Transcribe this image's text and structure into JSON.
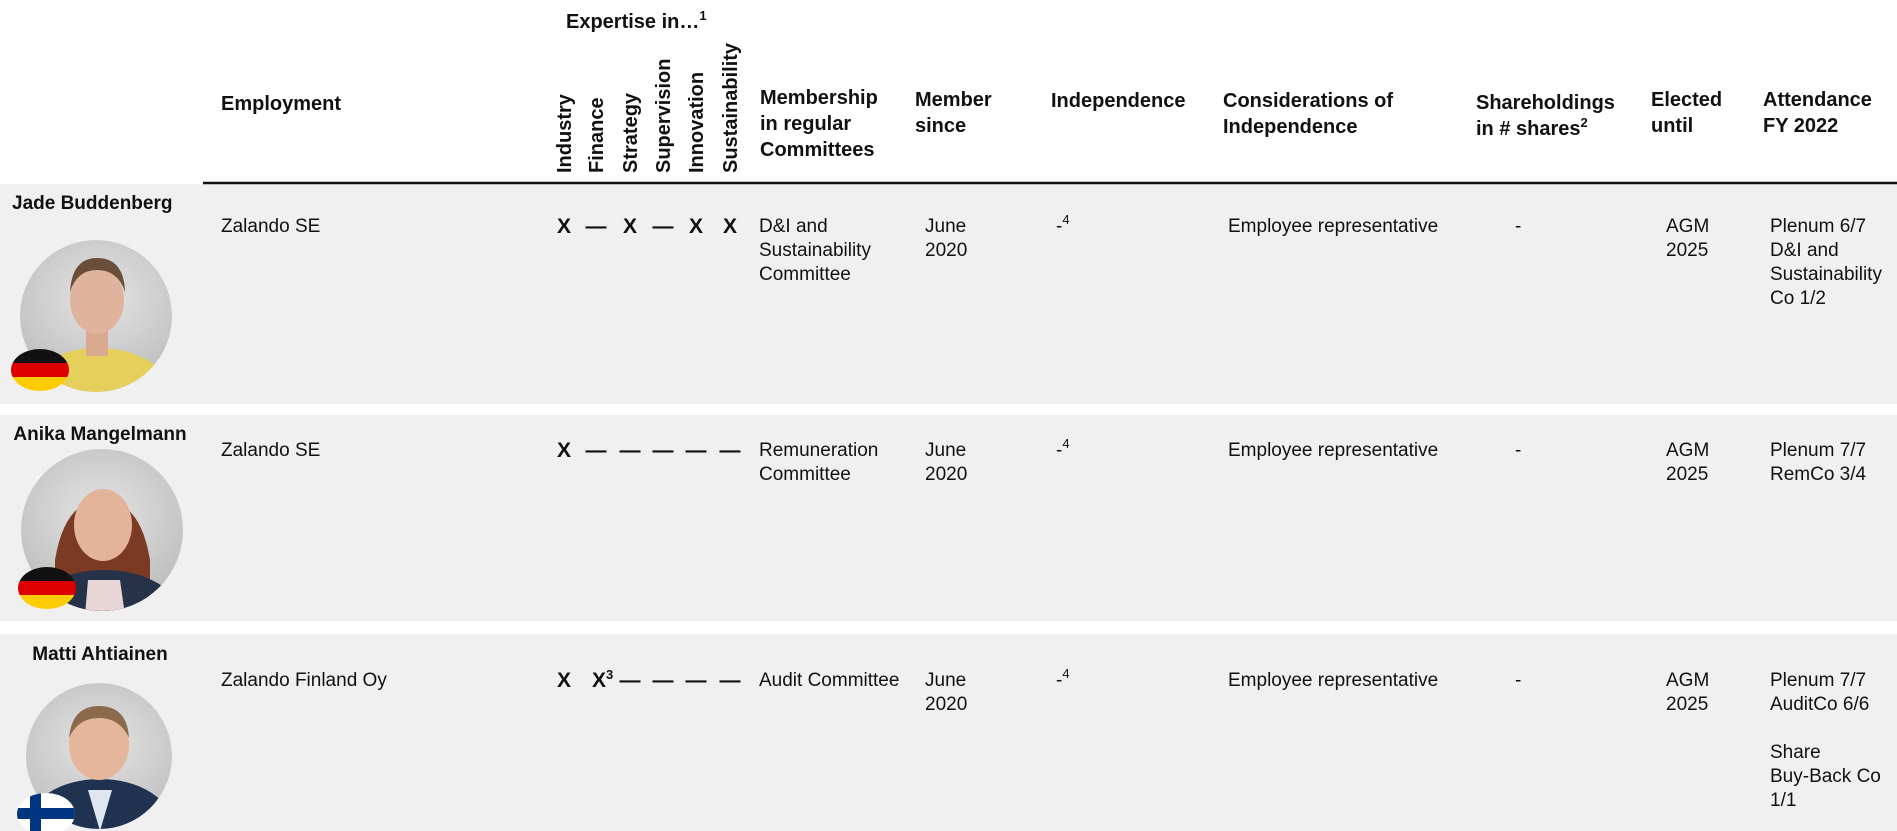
{
  "header": {
    "employment": "Employment",
    "expertise_title": "Expertise in…",
    "expertise_note": "1",
    "expertise_areas": [
      "Industry",
      "Finance",
      "Strategy",
      "Supervision",
      "Innovation",
      "Sustainability"
    ],
    "membership": [
      "Membership",
      "in regular",
      "Committees"
    ],
    "member_since": [
      "Member",
      "since"
    ],
    "independence": "Independence",
    "considerations": [
      "Considerations of",
      "Independence"
    ],
    "shareholdings": [
      "Shareholdings",
      "in # shares"
    ],
    "shareholdings_note": "2",
    "elected_until": [
      "Elected",
      "until"
    ],
    "attendance": [
      "Attendance",
      "FY 2022"
    ]
  },
  "rows": [
    {
      "name": "Jade Buddenberg",
      "employment": "Zalando SE",
      "expertise": [
        {
          "mark": "X"
        },
        {
          "mark": "—"
        },
        {
          "mark": "X"
        },
        {
          "mark": "—"
        },
        {
          "mark": "X"
        },
        {
          "mark": "X"
        }
      ],
      "membership": [
        "D&I and",
        "Sustainability",
        "Committee"
      ],
      "member_since": [
        "June",
        "2020"
      ],
      "independence": {
        "text": "-",
        "note": "4"
      },
      "considerations": "Employee representative",
      "shareholdings": "-",
      "elected_until": [
        "AGM",
        "2025"
      ],
      "attendance": [
        [
          "Plenum 6/7",
          "D&I and",
          "Sustainability",
          "Co 1/2"
        ]
      ]
    },
    {
      "name": "Anika Mangelmann",
      "employment": "Zalando SE",
      "expertise": [
        {
          "mark": "X"
        },
        {
          "mark": "—"
        },
        {
          "mark": "—"
        },
        {
          "mark": "—"
        },
        {
          "mark": "—"
        },
        {
          "mark": "—"
        }
      ],
      "membership": [
        "Remuneration",
        "Committee"
      ],
      "member_since": [
        "June",
        "2020"
      ],
      "independence": {
        "text": "-",
        "note": "4"
      },
      "considerations": "Employee representative",
      "shareholdings": "-",
      "elected_until": [
        "AGM",
        "2025"
      ],
      "attendance": [
        [
          "Plenum 7/7",
          "RemCo 3/4"
        ]
      ]
    },
    {
      "name": "Matti Ahtiainen",
      "employment": "Zalando Finland Oy",
      "expertise": [
        {
          "mark": "X"
        },
        {
          "mark": "X",
          "note": "3"
        },
        {
          "mark": "—"
        },
        {
          "mark": "—"
        },
        {
          "mark": "—"
        },
        {
          "mark": "—"
        }
      ],
      "membership": [
        "Audit Committee"
      ],
      "member_since": [
        "June",
        "2020"
      ],
      "independence": {
        "text": "-",
        "note": "4"
      },
      "considerations": "Employee representative",
      "shareholdings": "-",
      "elected_until": [
        "AGM",
        "2025"
      ],
      "attendance": [
        [
          "Plenum 7/7",
          "AuditCo 6/6"
        ],
        [
          "Share",
          "Buy-Back Co",
          "1/1"
        ]
      ]
    }
  ]
}
